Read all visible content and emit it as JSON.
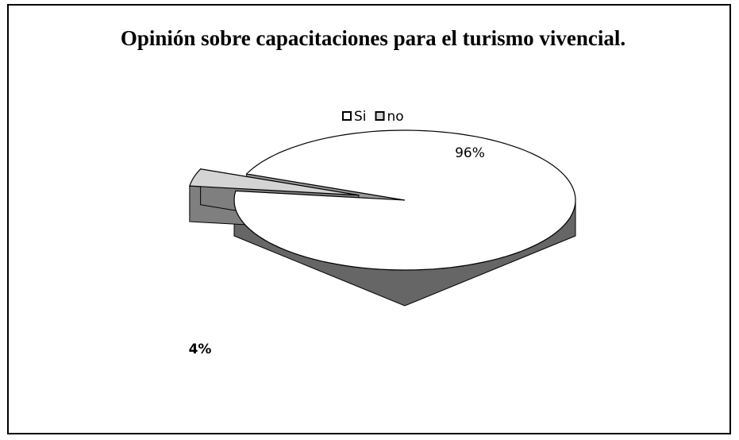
{
  "chart_data": {
    "type": "pie3d",
    "title": "Opinión sobre capacitaciones para el turismo vivencial.",
    "categories": [
      "Si",
      "no"
    ],
    "values": [
      96,
      4
    ],
    "value_labels": [
      "96%",
      "4%"
    ],
    "colors": [
      "#ffffff",
      "#d4d4d4"
    ],
    "legend": "top"
  }
}
